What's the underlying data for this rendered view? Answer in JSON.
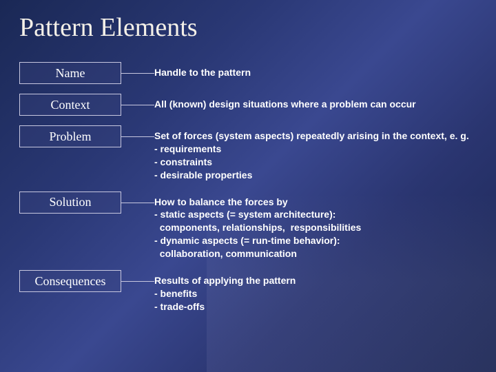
{
  "title": "Pattern Elements",
  "rows": [
    {
      "label": "Name",
      "desc": "Handle to the pattern"
    },
    {
      "label": "Context",
      "desc": "All (known) design situations where a problem can occur"
    },
    {
      "label": "Problem",
      "desc": "Set of forces (system aspects) repeatedly arising in the context, e. g.\n- requirements\n- constraints\n- desirable properties"
    },
    {
      "label": "Solution",
      "desc": "How to balance the forces by\n- static aspects (= system architecture):\n  components, relationships,  responsibilities\n- dynamic aspects (= run-time behavior):\n  collaboration, communication"
    },
    {
      "label": "Consequences",
      "desc": "Results of applying the pattern\n- benefits\n- trade-offs"
    }
  ],
  "colors": {
    "bg_grad_start": "#1a2855",
    "bg_grad_end": "#1a2550",
    "title_color": "#f4f0e8",
    "text_color": "#ffffff",
    "border_color": "#c8c8e0"
  },
  "fonts": {
    "title_size": 38,
    "label_size": 18,
    "desc_size": 14
  }
}
